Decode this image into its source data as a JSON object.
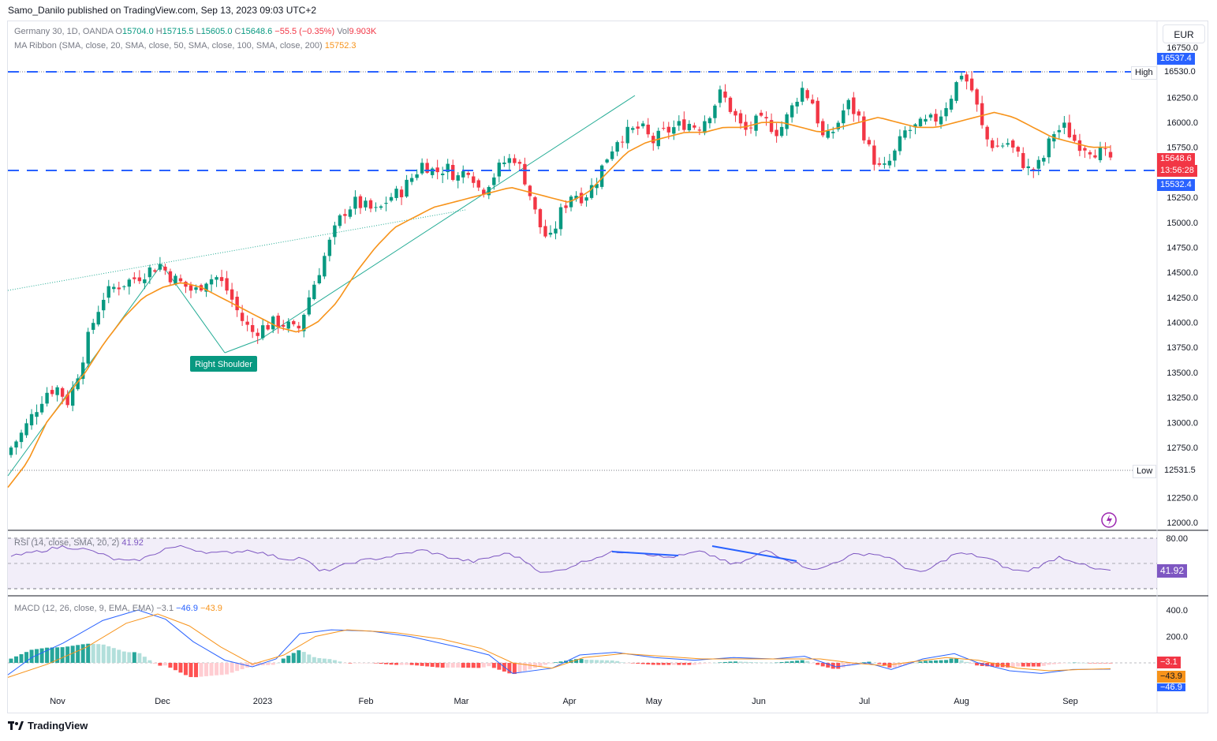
{
  "header": {
    "publisher": "Samo_Danilo published on TradingView.com, Sep 13, 2023 09:03 UTC+2"
  },
  "legend": {
    "symbol": "Germany 30, 1D, OANDA",
    "o_label": "O",
    "o": "15704.0",
    "h_label": "H",
    "h": "15715.5",
    "l_label": "L",
    "l": "15605.0",
    "c_label": "C",
    "c": "15648.6",
    "change": "−55.5 (−0.35%)",
    "vol_label": "Vol",
    "vol": "9.903K",
    "ma_ribbon": "MA Ribbon (SMA, close, 20, SMA, close, 50, SMA, close, 100, SMA, close, 200)",
    "ma_value": "15752.3",
    "rsi": "RSI (14, close, SMA, 20, 2)",
    "rsi_value": "41.92",
    "macd": "MACD (12, 26, close, 9, EMA, EMA)",
    "macd_hist": "−3.1",
    "macd_line": "−46.9",
    "macd_signal": "−43.9"
  },
  "currency": "EUR",
  "price_axis": {
    "ticks": [
      "16750.0",
      "16530.0",
      "16250.0",
      "16000.0",
      "15750.0",
      "15250.0",
      "15000.0",
      "14750.0",
      "14500.0",
      "14250.0",
      "14000.0",
      "13750.0",
      "13500.0",
      "13250.0",
      "13000.0",
      "12750.0",
      "12531.5",
      "12250.0",
      "12000.0"
    ],
    "high_label": "High",
    "high_value": "16530.0",
    "low_label": "Low",
    "low_value": "12531.5",
    "resistance_value": "16537.4",
    "support_value": "15532.4",
    "last_price": "15648.6",
    "countdown": "13:56:28"
  },
  "rsi_axis": {
    "ticks": [
      "80.00"
    ],
    "current": "41.92"
  },
  "macd_axis": {
    "ticks": [
      "400.0",
      "200.0"
    ],
    "hist": "−3.1",
    "signal": "−43.9",
    "line": "−46.9"
  },
  "time_axis": [
    "Nov",
    "Dec",
    "2023",
    "Feb",
    "Mar",
    "Apr",
    "May",
    "Jun",
    "Jul",
    "Aug",
    "Sep"
  ],
  "annotation": {
    "right_shoulder": "Right Shoulder"
  },
  "footer": {
    "brand": "TradingView"
  },
  "colors": {
    "up": "#089981",
    "down": "#f23645",
    "ma": "#f7931a",
    "level": "#2962ff",
    "trend": "#22ab94",
    "rsi": "#7e57c2"
  },
  "chart_data": {
    "type": "candlestick",
    "title": "Germany 30, 1D, OANDA",
    "ylim": [
      11950,
      16800
    ],
    "x_labels": [
      "Nov",
      "Dec",
      "2023",
      "Feb",
      "Mar",
      "Apr",
      "May",
      "Jun",
      "Jul",
      "Aug",
      "Sep"
    ],
    "levels": {
      "resistance": 16537.4,
      "support": 15532.4,
      "high": 16530.0,
      "low": 12531.5
    },
    "close_path": [
      12750,
      12900,
      13100,
      13300,
      13350,
      13200,
      13550,
      13950,
      14250,
      14350,
      14400,
      14450,
      14520,
      14580,
      14450,
      14380,
      14300,
      14430,
      14450,
      14300,
      14050,
      13900,
      13950,
      14000,
      13980,
      13900,
      14250,
      14550,
      14850,
      15100,
      15200,
      15150,
      15100,
      15250,
      15300,
      15450,
      15600,
      15500,
      15550,
      15450,
      15550,
      15300,
      15450,
      15600,
      15650,
      15400,
      15000,
      14800,
      15100,
      15300,
      15250,
      15400,
      15650,
      15850,
      15900,
      15950,
      15800,
      15900,
      15950,
      16000,
      15950,
      16100,
      16300,
      16100,
      15900,
      16000,
      16000,
      15900,
      16100,
      16350,
      16200,
      15800,
      15950,
      16200,
      16050,
      15700,
      15500,
      15650,
      15900,
      15950,
      16000,
      16050,
      16250,
      16500,
      16300,
      15850,
      15750,
      15800,
      15650,
      15500,
      15600,
      15900,
      15950,
      15800,
      15750,
      15700,
      15648.6
    ],
    "ma20_path": [
      12350,
      12600,
      13000,
      13250,
      13500,
      13800,
      14050,
      14250,
      14350,
      14400,
      14350,
      14250,
      14150,
      14050,
      13950,
      13900,
      14000,
      14200,
      14500,
      14750,
      14950,
      15050,
      15150,
      15200,
      15250,
      15300,
      15350,
      15300,
      15250,
      15200,
      15300,
      15500,
      15700,
      15800,
      15850,
      15900,
      15900,
      15950,
      15950,
      16000,
      16000,
      15950,
      15900,
      15950,
      16000,
      16050,
      16000,
      15950,
      15950,
      16000,
      16050,
      16100,
      16050,
      15950,
      15850,
      15800,
      15750,
      15752.3
    ],
    "rsi_path": [
      58,
      62,
      66,
      70,
      68,
      63,
      55,
      52,
      58,
      68,
      70,
      65,
      62,
      64,
      66,
      60,
      55,
      57,
      40,
      45,
      52,
      55,
      58,
      62,
      66,
      60,
      55,
      52,
      58,
      62,
      52,
      38,
      42,
      50,
      57,
      63,
      65,
      62,
      57,
      59,
      64,
      58,
      48,
      55,
      66,
      56,
      48,
      42,
      52,
      60,
      62,
      58,
      46,
      38,
      50,
      62,
      60,
      55,
      44,
      40,
      48,
      58,
      52,
      43,
      41.92
    ],
    "macd_hist_series": [],
    "macd_values": {
      "macd": -46.9,
      "signal": -43.9,
      "histogram": -3.1
    },
    "rsi_value": 41.92
  }
}
